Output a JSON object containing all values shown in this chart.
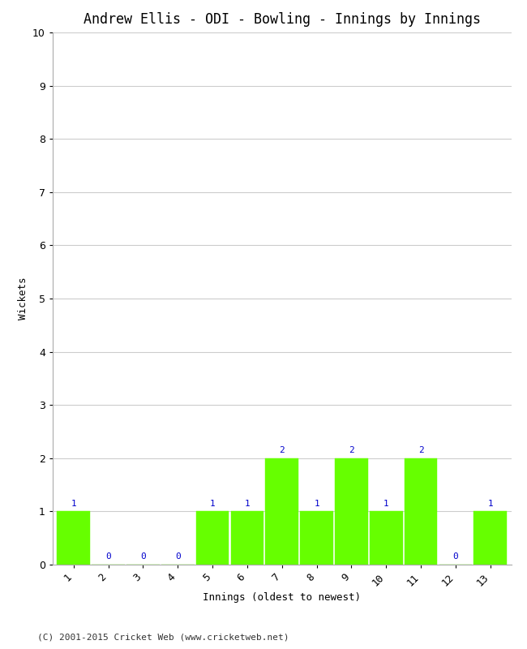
{
  "title": "Andrew Ellis - ODI - Bowling - Innings by Innings",
  "xlabel": "Innings (oldest to newest)",
  "ylabel": "Wickets",
  "categories": [
    "1",
    "2",
    "3",
    "4",
    "5",
    "6",
    "7",
    "8",
    "9",
    "10",
    "11",
    "12",
    "13"
  ],
  "values": [
    1,
    0,
    0,
    0,
    1,
    1,
    2,
    1,
    2,
    1,
    2,
    0,
    1
  ],
  "bar_color": "#66ff00",
  "bar_edge_color": "#66ff00",
  "label_color": "#0000cc",
  "background_color": "#ffffff",
  "grid_color": "#cccccc",
  "ylim": [
    0,
    10
  ],
  "yticks": [
    0,
    1,
    2,
    3,
    4,
    5,
    6,
    7,
    8,
    9,
    10
  ],
  "title_fontsize": 12,
  "axis_label_fontsize": 9,
  "tick_fontsize": 9,
  "annotation_fontsize": 8,
  "footer_text": "(C) 2001-2015 Cricket Web (www.cricketweb.net)",
  "footer_fontsize": 8
}
